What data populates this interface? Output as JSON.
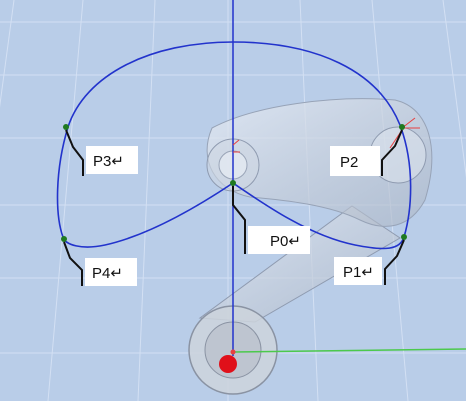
{
  "colors": {
    "background": "#b9cde8",
    "grid": "#d3e0f3",
    "path": "#2233cc",
    "vertical_axis": "#2233cc",
    "horizontal_axis": "#4cc94c",
    "waypoint": "#1f7a1f",
    "base_marker": "#e0101a"
  },
  "points": {
    "p0": {
      "label": "P0↵"
    },
    "p1": {
      "label": "P1↵"
    },
    "p2": {
      "label": "P2"
    },
    "p3": {
      "label": "P3↵"
    },
    "p4": {
      "label": "P4↵"
    }
  }
}
